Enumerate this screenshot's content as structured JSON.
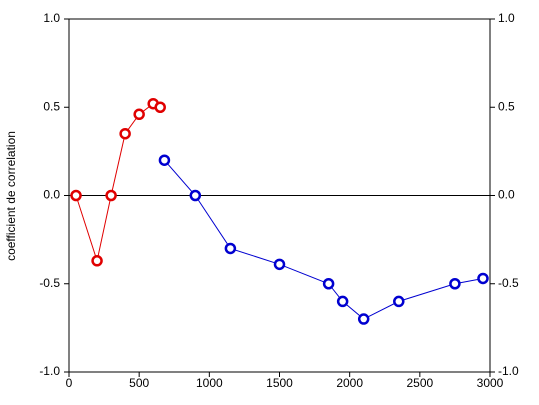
{
  "chart_data": {
    "type": "line",
    "y_label": "coefficient de correlation",
    "xlim": [
      0,
      3000
    ],
    "xticks": [
      0,
      500,
      1000,
      1500,
      2000,
      2500,
      3000
    ],
    "ylim": [
      -1,
      1
    ],
    "yticks": [
      {
        "value": -1,
        "label": "-1.0"
      },
      {
        "value": -0.5,
        "label": "-0.5"
      },
      {
        "value": 0,
        "label": "0.0"
      },
      {
        "value": 0.5,
        "label": "0.5"
      },
      {
        "value": 1,
        "label": "1.0"
      }
    ],
    "zero_line": true,
    "series": [
      {
        "color": "#e00000",
        "x": [
          50,
          200,
          300,
          400,
          500,
          600,
          650
        ],
        "values": [
          0,
          -0.37,
          0,
          0.35,
          0.46,
          0.52,
          0.5
        ]
      },
      {
        "color": "#0000d0",
        "x": [
          680,
          900,
          1150,
          1500,
          1850,
          1950,
          2100,
          2350,
          2750,
          2950
        ],
        "values": [
          0.2,
          0,
          -0.3,
          -0.39,
          -0.5,
          -0.6,
          -0.7,
          -0.6,
          -0.5,
          -0.47
        ]
      }
    ]
  }
}
